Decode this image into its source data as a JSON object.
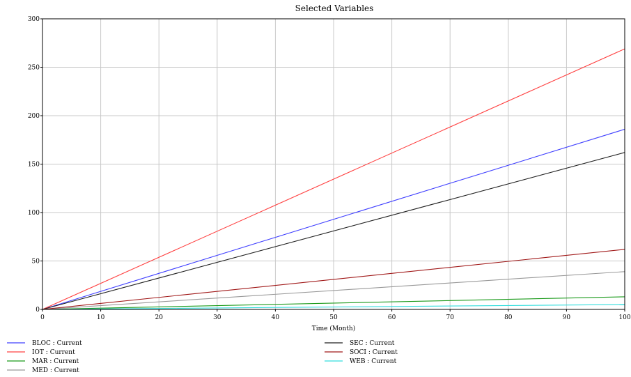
{
  "chart_data": {
    "type": "line",
    "title": "Selected Variables",
    "xlabel": "Time (Month)",
    "ylabel": "",
    "xlim": [
      0,
      100
    ],
    "ylim": [
      0,
      300
    ],
    "x_ticks": [
      0,
      10,
      20,
      30,
      40,
      50,
      60,
      70,
      80,
      90,
      100
    ],
    "y_ticks": [
      0,
      50,
      100,
      150,
      200,
      250,
      300
    ],
    "grid": true,
    "legend_position": "bottom",
    "x": [
      0,
      100
    ],
    "series": [
      {
        "name": "BLOC : Current",
        "color": "#4040ff",
        "values": [
          0,
          186
        ]
      },
      {
        "name": "IOT : Current",
        "color": "#ff4040",
        "values": [
          0,
          269
        ]
      },
      {
        "name": "MAR : Current",
        "color": "#1a9a1a",
        "values": [
          0,
          13
        ]
      },
      {
        "name": "MED : Current",
        "color": "#999999",
        "values": [
          0,
          39
        ]
      },
      {
        "name": "SEC : Current",
        "color": "#222222",
        "values": [
          0,
          162
        ]
      },
      {
        "name": "SOCI : Current",
        "color": "#a01818",
        "values": [
          0,
          62
        ]
      },
      {
        "name": "WEB : Current",
        "color": "#33dddd",
        "values": [
          0,
          5
        ]
      }
    ]
  }
}
